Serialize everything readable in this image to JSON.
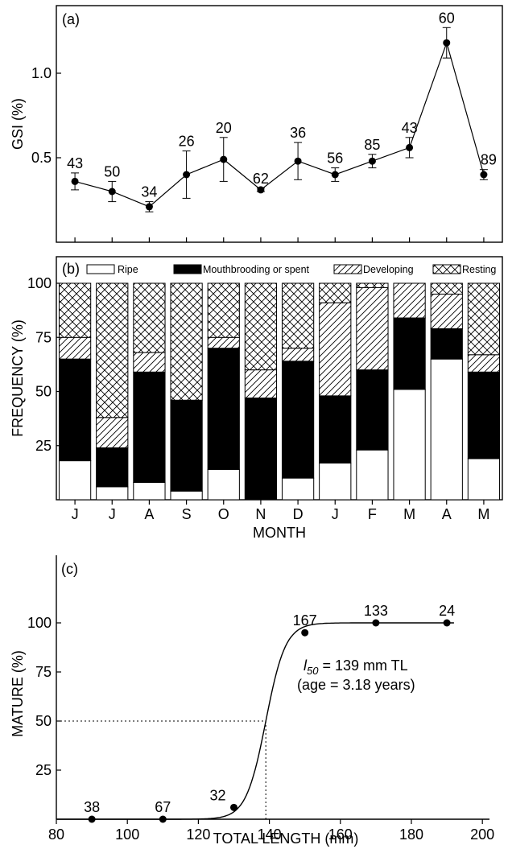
{
  "chart_data": [
    {
      "panel": "(a)",
      "type": "line",
      "ylabel": "GSI (%)",
      "ylim": [
        0,
        1.4
      ],
      "yticks": [
        0.5,
        1.0
      ],
      "ytick_labels": [
        "0.5",
        "1.0"
      ],
      "categories": [
        "J",
        "J",
        "A",
        "S",
        "O",
        "N",
        "D",
        "J",
        "F",
        "M",
        "A",
        "M"
      ],
      "values": [
        0.36,
        0.3,
        0.21,
        0.4,
        0.49,
        0.31,
        0.48,
        0.4,
        0.48,
        0.56,
        1.18,
        0.4
      ],
      "error": [
        0.05,
        0.06,
        0.03,
        0.14,
        0.13,
        0.01,
        0.11,
        0.04,
        0.04,
        0.06,
        0.09,
        0.03
      ],
      "labels": [
        "43",
        "50",
        "34",
        "26",
        "20",
        "62",
        "36",
        "56",
        "85",
        "43",
        "60",
        "89"
      ],
      "color": "#000000"
    },
    {
      "panel": "(b)",
      "type": "bar",
      "stacked": true,
      "ylabel": "FREQUENCY (%)",
      "xlabel": "MONTH",
      "ylim": [
        0,
        100
      ],
      "yticks": [
        25,
        50,
        75,
        100
      ],
      "ytick_labels": [
        "25",
        "50",
        "75",
        "100"
      ],
      "categories": [
        "J",
        "J",
        "A",
        "S",
        "O",
        "N",
        "D",
        "J",
        "F",
        "M",
        "A",
        "M"
      ],
      "legend_position": "top",
      "series": [
        {
          "name": "Ripe",
          "fill": "white",
          "values": [
            18,
            6,
            8,
            4,
            14,
            0,
            10,
            17,
            23,
            51,
            65,
            19
          ]
        },
        {
          "name": "Mouthbrooding or spent",
          "fill": "black",
          "values": [
            47,
            18,
            51,
            42,
            56,
            47,
            54,
            31,
            37,
            33,
            14,
            40
          ]
        },
        {
          "name": "Developing",
          "fill": "hatch",
          "values": [
            10,
            14,
            9,
            0,
            5,
            13,
            6,
            43,
            38,
            16,
            16,
            8
          ]
        },
        {
          "name": "Resting",
          "fill": "crosshatch",
          "values": [
            25,
            62,
            32,
            54,
            25,
            40,
            30,
            9,
            2,
            0,
            5,
            33
          ]
        }
      ]
    },
    {
      "panel": "(c)",
      "type": "line",
      "ylabel": "MATURE (%)",
      "xlabel": "TOTAL LENGTH (mm)",
      "xlim": [
        80,
        202
      ],
      "ylim": [
        0,
        110
      ],
      "xticks": [
        80,
        100,
        120,
        140,
        160,
        180,
        200
      ],
      "xtick_labels": [
        "80",
        "100",
        "120",
        "140",
        "160",
        "180",
        "200"
      ],
      "yticks": [
        25,
        50,
        75,
        100
      ],
      "ytick_labels": [
        "25",
        "50",
        "75",
        "100"
      ],
      "points": [
        {
          "x": 90,
          "y": 0,
          "label": "38"
        },
        {
          "x": 110,
          "y": 0,
          "label": "67"
        },
        {
          "x": 130,
          "y": 6,
          "label": "32"
        },
        {
          "x": 150,
          "y": 95,
          "label": "167"
        },
        {
          "x": 170,
          "y": 100,
          "label": "133"
        },
        {
          "x": 190,
          "y": 100,
          "label": "24"
        }
      ],
      "l50": 139,
      "annotation": {
        "prefix": "l",
        "subscript": "50",
        "line1_rest": " = 139 mm TL",
        "line2": "(age = 3.18 years)"
      }
    }
  ]
}
